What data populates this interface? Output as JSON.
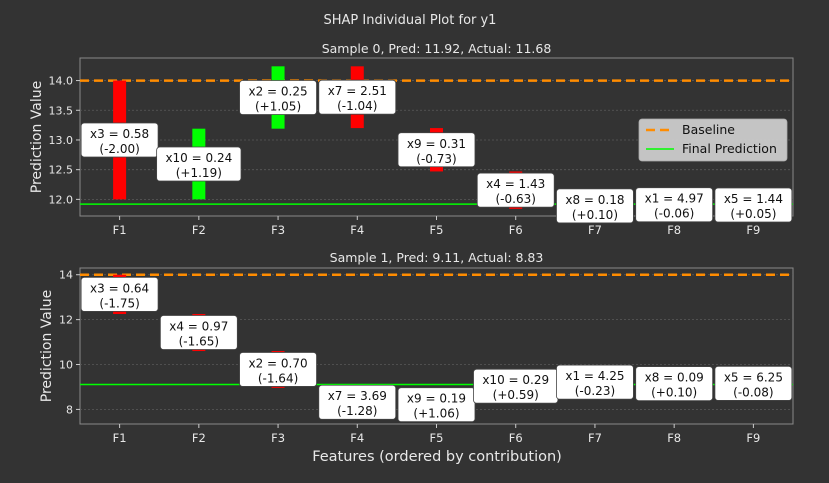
{
  "figure": {
    "title": "SHAP Individual Plot for y1",
    "xlabel": "Features (ordered by contribution)"
  },
  "colors": {
    "background": "#333333",
    "text": "#e8e8e8",
    "positive": "#00ff00",
    "negative": "#ff0000",
    "baseline": "#ff8c00",
    "final": "#00ff00",
    "annotation_bg": "#ffffff"
  },
  "chart_data": [
    {
      "type": "bar",
      "title": "Sample 0, Pred: 11.92, Actual: 11.68",
      "ylabel": "Prediction Value",
      "ylim": [
        11.72,
        14.38
      ],
      "yticks": [
        12.0,
        12.5,
        13.0,
        13.5,
        14.0
      ],
      "baseline": 14.0,
      "final_prediction": 11.92,
      "legend": {
        "position": "center-right",
        "entries": [
          "Baseline",
          "Final Prediction"
        ]
      },
      "categories": [
        "F1",
        "F2",
        "F3",
        "F4",
        "F5",
        "F6",
        "F7",
        "F8",
        "F9"
      ],
      "contributions": [
        {
          "feature": "F1",
          "start": 14.0,
          "end": 12.0,
          "value": -2.0,
          "label": "x3 = 0.58",
          "delta": "(-2.00)"
        },
        {
          "feature": "F2",
          "start": 12.0,
          "end": 13.19,
          "value": 1.19,
          "label": "x10 = 0.24",
          "delta": "(+1.19)"
        },
        {
          "feature": "F3",
          "start": 13.19,
          "end": 14.24,
          "value": 1.05,
          "label": "x2 = 0.25",
          "delta": "(+1.05)"
        },
        {
          "feature": "F4",
          "start": 14.24,
          "end": 13.2,
          "value": -1.04,
          "label": "x7 = 2.51",
          "delta": "(-1.04)"
        },
        {
          "feature": "F5",
          "start": 13.2,
          "end": 12.47,
          "value": -0.73,
          "label": "x9 = 0.31",
          "delta": "(-0.73)"
        },
        {
          "feature": "F6",
          "start": 12.47,
          "end": 11.84,
          "value": -0.63,
          "label": "x4 = 1.43",
          "delta": "(-0.63)"
        },
        {
          "feature": "F7",
          "start": 11.84,
          "end": 11.94,
          "value": 0.1,
          "label": "x8 = 0.18",
          "delta": "(+0.10)"
        },
        {
          "feature": "F8",
          "start": 11.94,
          "end": 11.88,
          "value": -0.06,
          "label": "x1 = 4.97",
          "delta": "(-0.06)"
        },
        {
          "feature": "F9",
          "start": 11.88,
          "end": 11.93,
          "value": 0.05,
          "label": "x5 = 1.44",
          "delta": "(+0.05)"
        }
      ]
    },
    {
      "type": "bar",
      "title": "Sample 1, Pred: 9.11, Actual: 8.83",
      "ylabel": "Prediction Value",
      "ylim": [
        7.35,
        14.3
      ],
      "yticks": [
        8,
        10,
        12,
        14
      ],
      "baseline": 14.0,
      "final_prediction": 9.11,
      "categories": [
        "F1",
        "F2",
        "F3",
        "F4",
        "F5",
        "F6",
        "F7",
        "F8",
        "F9"
      ],
      "contributions": [
        {
          "feature": "F1",
          "start": 14.0,
          "end": 12.25,
          "value": -1.75,
          "label": "x3 = 0.64",
          "delta": "(-1.75)"
        },
        {
          "feature": "F2",
          "start": 12.25,
          "end": 10.6,
          "value": -1.65,
          "label": "x4 = 0.97",
          "delta": "(-1.65)"
        },
        {
          "feature": "F3",
          "start": 10.6,
          "end": 8.96,
          "value": -1.64,
          "label": "x2 = 0.70",
          "delta": "(-1.64)"
        },
        {
          "feature": "F4",
          "start": 8.96,
          "end": 7.68,
          "value": -1.28,
          "label": "x7 = 3.69",
          "delta": "(-1.28)"
        },
        {
          "feature": "F5",
          "start": 7.68,
          "end": 8.74,
          "value": 1.06,
          "label": "x9 = 0.19",
          "delta": "(+1.06)"
        },
        {
          "feature": "F6",
          "start": 8.74,
          "end": 9.33,
          "value": 0.59,
          "label": "x10 = 0.29",
          "delta": "(+0.59)"
        },
        {
          "feature": "F7",
          "start": 9.33,
          "end": 9.1,
          "value": -0.23,
          "label": "x1 = 4.25",
          "delta": "(-0.23)"
        },
        {
          "feature": "F8",
          "start": 9.1,
          "end": 9.2,
          "value": 0.1,
          "label": "x8 = 0.09",
          "delta": "(+0.10)"
        },
        {
          "feature": "F9",
          "start": 9.2,
          "end": 9.12,
          "value": -0.08,
          "label": "x5 = 6.25",
          "delta": "(-0.08)"
        }
      ]
    }
  ]
}
